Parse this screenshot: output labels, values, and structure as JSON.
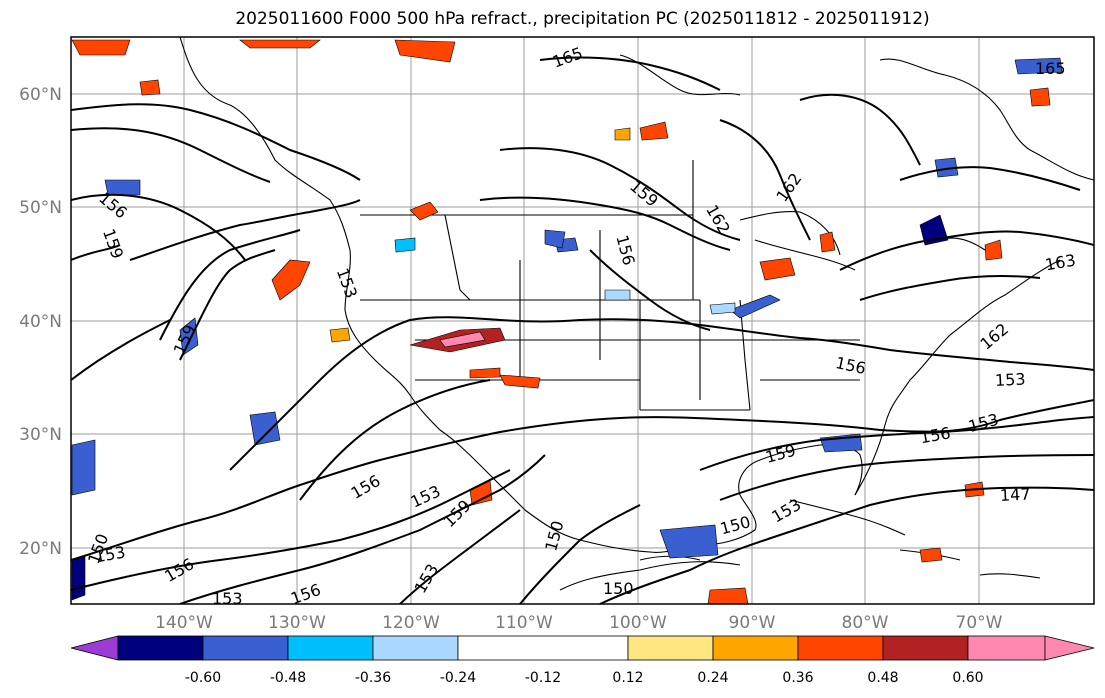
{
  "title": "2025011600 F000 500 hPa refract., precipitation PC (2025011812 - 2025011912)",
  "map": {
    "lat_labels": [
      "60°N",
      "50°N",
      "40°N",
      "30°N",
      "20°N"
    ],
    "lon_labels": [
      "140°W",
      "130°W",
      "120°W",
      "110°W",
      "100°W",
      "90°W",
      "80°W",
      "70°W"
    ],
    "lat_range": [
      15,
      65
    ],
    "lon_range": [
      -150,
      -60
    ],
    "contour_labels": [
      "165",
      "162",
      "159",
      "156",
      "153",
      "150",
      "147",
      "163"
    ]
  },
  "colorbar": {
    "ticks": [
      "-0.60",
      "-0.48",
      "-0.36",
      "-0.24",
      "-0.12",
      "0.12",
      "0.24",
      "0.36",
      "0.48",
      "0.60"
    ],
    "colors": [
      "#9c3bd6",
      "#00007f",
      "#3a5fd0",
      "#00bfff",
      "#aad8ff",
      "#ffffff",
      "#ffe680",
      "#ffa500",
      "#ff4500",
      "#b22222",
      "#ff88b0"
    ]
  }
}
